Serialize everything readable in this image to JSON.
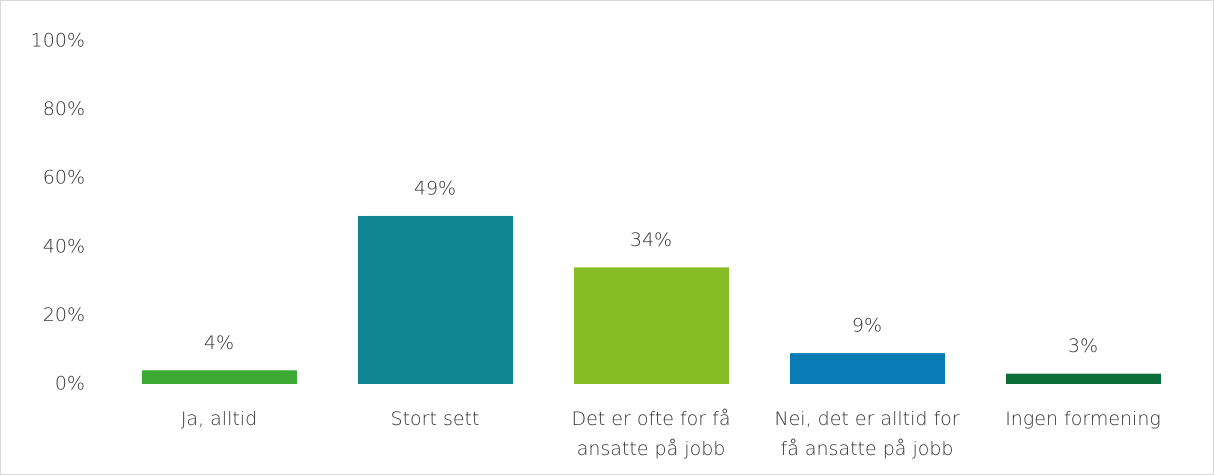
{
  "chart_data": {
    "type": "bar",
    "categories": [
      "Ja, alltid",
      "Stort sett",
      "Det er ofte for få ansatte på jobb",
      "Nei, det er alltid for få ansatte på jobb",
      "Ingen formening"
    ],
    "values": [
      4,
      49,
      34,
      9,
      3
    ],
    "value_labels": [
      "4%",
      "49%",
      "34%",
      "9%",
      "3%"
    ],
    "colors": [
      "#3aaa35",
      "#0e8590",
      "#86bc25",
      "#0a7bb5",
      "#0b6e3a"
    ],
    "ylim": [
      0,
      100
    ],
    "yticks": [
      {
        "value": 0,
        "label": "0%"
      },
      {
        "value": 20,
        "label": "20%"
      },
      {
        "value": 40,
        "label": "40%"
      },
      {
        "value": 60,
        "label": "60%"
      },
      {
        "value": 80,
        "label": "80%"
      },
      {
        "value": 100,
        "label": "100%"
      }
    ],
    "grid": false
  }
}
